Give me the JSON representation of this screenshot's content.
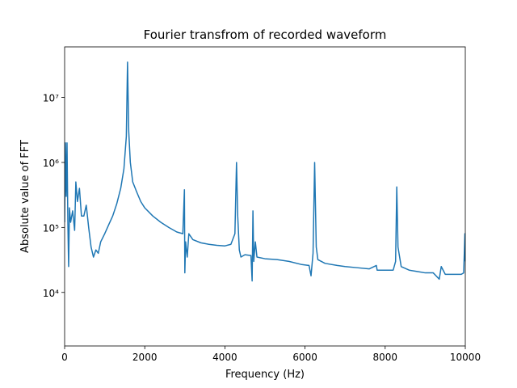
{
  "chart_data": {
    "type": "line",
    "title": "Fourier transfrom of recorded waveform",
    "xlabel": "Frequency (Hz)",
    "ylabel": "Absolute value of FFT",
    "yscale": "log",
    "color": "#1f77b4",
    "xlim": [
      0,
      10000
    ],
    "xticks": [
      0,
      2000,
      4000,
      6000,
      8000,
      10000
    ],
    "ylim": [
      1500,
      60000000
    ],
    "yticks": [
      {
        "value": 10000,
        "label": "10⁴"
      },
      {
        "value": 100000,
        "label": "10⁵"
      },
      {
        "value": 1000000,
        "label": "10⁶"
      },
      {
        "value": 10000000,
        "label": "10⁷"
      }
    ],
    "x": [
      0,
      20,
      40,
      60,
      80,
      100,
      120,
      150,
      200,
      250,
      280,
      320,
      370,
      420,
      480,
      540,
      600,
      660,
      720,
      780,
      840,
      900,
      1000,
      1100,
      1200,
      1300,
      1400,
      1480,
      1540,
      1570,
      1600,
      1640,
      1700,
      1800,
      1900,
      2000,
      2200,
      2400,
      2600,
      2800,
      2950,
      2990,
      3000,
      3020,
      3060,
      3100,
      3200,
      3400,
      3600,
      3800,
      4000,
      4150,
      4250,
      4290,
      4320,
      4360,
      4400,
      4500,
      4650,
      4680,
      4700,
      4720,
      4760,
      4800,
      5000,
      5300,
      5600,
      5900,
      6100,
      6150,
      6200,
      6240,
      6280,
      6320,
      6500,
      6800,
      7000,
      7300,
      7600,
      7780,
      7800,
      8000,
      8200,
      8260,
      8290,
      8320,
      8400,
      8600,
      8800,
      9000,
      9200,
      9350,
      9400,
      9500,
      9700,
      9900,
      9960,
      9990,
      10000
    ],
    "values": [
      120000,
      2000000,
      300000,
      2000000,
      130000,
      25000,
      200000,
      120000,
      180000,
      90000,
      500000,
      250000,
      400000,
      150000,
      150000,
      220000,
      100000,
      50000,
      35000,
      45000,
      40000,
      60000,
      80000,
      110000,
      150000,
      230000,
      400000,
      800000,
      2500000,
      35000000,
      3000000,
      1000000,
      500000,
      350000,
      250000,
      200000,
      150000,
      120000,
      100000,
      85000,
      80000,
      380000,
      20000,
      60000,
      35000,
      80000,
      65000,
      58000,
      55000,
      53000,
      52000,
      55000,
      80000,
      1000000,
      150000,
      45000,
      35000,
      38000,
      37000,
      15000,
      180000,
      30000,
      60000,
      35000,
      33000,
      32000,
      30000,
      27000,
      26000,
      18000,
      40000,
      1000000,
      50000,
      32000,
      28000,
      26000,
      25000,
      24000,
      23000,
      26000,
      22000,
      22000,
      22000,
      30000,
      420000,
      50000,
      25000,
      22000,
      21000,
      20000,
      20000,
      16000,
      25000,
      19000,
      19000,
      19000,
      20000,
      80000,
      30000
    ]
  }
}
